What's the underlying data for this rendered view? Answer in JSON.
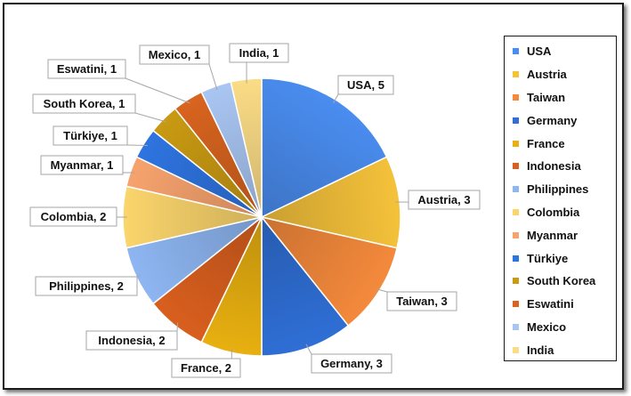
{
  "chart_data": {
    "type": "pie",
    "slices": [
      {
        "label": "USA",
        "value": 5,
        "callout": "USA, 5",
        "color": "#4a8df0"
      },
      {
        "label": "Austria",
        "value": 3,
        "callout": "Austria, 3",
        "color": "#f5c23a"
      },
      {
        "label": "Taiwan",
        "value": 3,
        "callout": "Taiwan, 3",
        "color": "#f58a3c"
      },
      {
        "label": "Germany",
        "value": 3,
        "callout": "Germany, 3",
        "color": "#2f6fd6"
      },
      {
        "label": "France",
        "value": 2,
        "callout": "France, 2",
        "color": "#e8b010"
      },
      {
        "label": "Indonesia",
        "value": 2,
        "callout": "Indonesia, 2",
        "color": "#d95f1e"
      },
      {
        "label": "Philippines",
        "value": 2,
        "callout": "Philippines, 2",
        "color": "#8eb6f2"
      },
      {
        "label": "Colombia",
        "value": 2,
        "callout": "Colombia, 2",
        "color": "#fbd56c"
      },
      {
        "label": "Myanmar",
        "value": 1,
        "callout": "Myanmar, 1",
        "color": "#f7a36e"
      },
      {
        "label": "Türkiye",
        "value": 1,
        "callout": "Türkiye, 1",
        "color": "#2e74e0"
      },
      {
        "label": "South Korea",
        "value": 1,
        "callout": "South Korea, 1",
        "color": "#c99a12"
      },
      {
        "label": "Eswatini",
        "value": 1,
        "callout": "Eswatini, 1",
        "color": "#d8641f"
      },
      {
        "label": "Mexico",
        "value": 1,
        "callout": "Mexico, 1",
        "color": "#a9c6f3"
      },
      {
        "label": "India",
        "value": 1,
        "callout": "India, 1",
        "color": "#fbdc86"
      }
    ],
    "legend_position": "right"
  }
}
